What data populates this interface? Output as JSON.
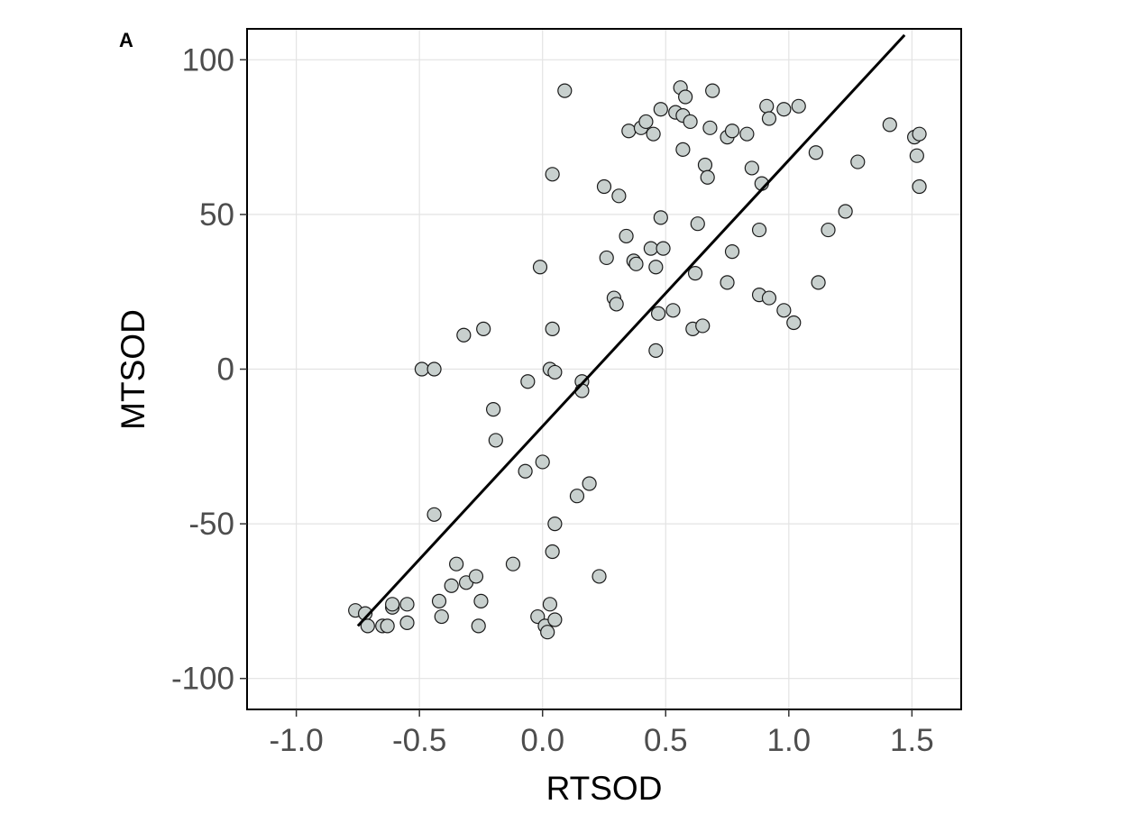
{
  "chart_data": {
    "type": "scatter",
    "panel_label": "A",
    "xlabel": "RTSOD",
    "ylabel": "MTSOD",
    "xlim": [
      -1.2,
      1.7
    ],
    "ylim": [
      -110,
      110
    ],
    "x_ticks": [
      -1.0,
      -0.5,
      0.0,
      0.5,
      1.0,
      1.5
    ],
    "x_tick_labels": [
      "-1.0",
      "-0.5",
      "0.0",
      "0.5",
      "1.0",
      "1.5"
    ],
    "y_ticks": [
      -100,
      -50,
      0,
      50,
      100
    ],
    "y_tick_labels": [
      "-100",
      "-50",
      "0",
      "50",
      "100"
    ],
    "grid": true,
    "legend": "none",
    "point_fill": "#c8d0ce",
    "point_stroke": "#1a1a1a",
    "fit_line": {
      "x": [
        -0.75,
        1.47
      ],
      "y": [
        -83,
        108
      ],
      "color": "#000000"
    },
    "points": [
      {
        "x": -0.76,
        "y": -78
      },
      {
        "x": -0.72,
        "y": -79
      },
      {
        "x": -0.71,
        "y": -83
      },
      {
        "x": -0.65,
        "y": -83
      },
      {
        "x": -0.63,
        "y": -83
      },
      {
        "x": -0.61,
        "y": -77
      },
      {
        "x": -0.61,
        "y": -76
      },
      {
        "x": -0.55,
        "y": -76
      },
      {
        "x": -0.55,
        "y": -82
      },
      {
        "x": -0.49,
        "y": 0
      },
      {
        "x": -0.44,
        "y": 0
      },
      {
        "x": -0.44,
        "y": -47
      },
      {
        "x": -0.42,
        "y": -75
      },
      {
        "x": -0.41,
        "y": -80
      },
      {
        "x": -0.37,
        "y": -70
      },
      {
        "x": -0.35,
        "y": -63
      },
      {
        "x": -0.31,
        "y": -69
      },
      {
        "x": -0.32,
        "y": 11
      },
      {
        "x": -0.27,
        "y": -67
      },
      {
        "x": -0.25,
        "y": -75
      },
      {
        "x": -0.26,
        "y": -83
      },
      {
        "x": -0.24,
        "y": 13
      },
      {
        "x": -0.2,
        "y": -13
      },
      {
        "x": -0.19,
        "y": -23
      },
      {
        "x": -0.12,
        "y": -63
      },
      {
        "x": -0.07,
        "y": -33
      },
      {
        "x": -0.06,
        "y": -4
      },
      {
        "x": -0.02,
        "y": -80
      },
      {
        "x": -0.01,
        "y": 33
      },
      {
        "x": 0.0,
        "y": -30
      },
      {
        "x": 0.01,
        "y": -83
      },
      {
        "x": 0.02,
        "y": -85
      },
      {
        "x": 0.03,
        "y": -76
      },
      {
        "x": 0.03,
        "y": 0
      },
      {
        "x": 0.04,
        "y": 63
      },
      {
        "x": 0.04,
        "y": 13
      },
      {
        "x": 0.05,
        "y": -1
      },
      {
        "x": 0.04,
        "y": -59
      },
      {
        "x": 0.05,
        "y": -81
      },
      {
        "x": 0.05,
        "y": -50
      },
      {
        "x": 0.09,
        "y": 90
      },
      {
        "x": 0.14,
        "y": -41
      },
      {
        "x": 0.16,
        "y": -4
      },
      {
        "x": 0.16,
        "y": -7
      },
      {
        "x": 0.19,
        "y": -37
      },
      {
        "x": 0.23,
        "y": -67
      },
      {
        "x": 0.25,
        "y": 59
      },
      {
        "x": 0.26,
        "y": 36
      },
      {
        "x": 0.29,
        "y": 23
      },
      {
        "x": 0.3,
        "y": 21
      },
      {
        "x": 0.31,
        "y": 56
      },
      {
        "x": 0.34,
        "y": 43
      },
      {
        "x": 0.35,
        "y": 77
      },
      {
        "x": 0.37,
        "y": 35
      },
      {
        "x": 0.38,
        "y": 34
      },
      {
        "x": 0.4,
        "y": 78
      },
      {
        "x": 0.42,
        "y": 80
      },
      {
        "x": 0.44,
        "y": 39
      },
      {
        "x": 0.45,
        "y": 76
      },
      {
        "x": 0.46,
        "y": 33
      },
      {
        "x": 0.46,
        "y": 6
      },
      {
        "x": 0.47,
        "y": 18
      },
      {
        "x": 0.48,
        "y": 84
      },
      {
        "x": 0.48,
        "y": 49
      },
      {
        "x": 0.49,
        "y": 39
      },
      {
        "x": 0.53,
        "y": 19
      },
      {
        "x": 0.54,
        "y": 83
      },
      {
        "x": 0.56,
        "y": 91
      },
      {
        "x": 0.57,
        "y": 71
      },
      {
        "x": 0.57,
        "y": 82
      },
      {
        "x": 0.58,
        "y": 88
      },
      {
        "x": 0.6,
        "y": 80
      },
      {
        "x": 0.61,
        "y": 13
      },
      {
        "x": 0.62,
        "y": 31
      },
      {
        "x": 0.63,
        "y": 47
      },
      {
        "x": 0.65,
        "y": 14
      },
      {
        "x": 0.66,
        "y": 66
      },
      {
        "x": 0.67,
        "y": 62
      },
      {
        "x": 0.68,
        "y": 78
      },
      {
        "x": 0.69,
        "y": 90
      },
      {
        "x": 0.75,
        "y": 28
      },
      {
        "x": 0.75,
        "y": 75
      },
      {
        "x": 0.77,
        "y": 77
      },
      {
        "x": 0.77,
        "y": 38
      },
      {
        "x": 0.83,
        "y": 76
      },
      {
        "x": 0.85,
        "y": 65
      },
      {
        "x": 0.88,
        "y": 45
      },
      {
        "x": 0.88,
        "y": 24
      },
      {
        "x": 0.89,
        "y": 60
      },
      {
        "x": 0.91,
        "y": 85
      },
      {
        "x": 0.92,
        "y": 81
      },
      {
        "x": 0.92,
        "y": 23
      },
      {
        "x": 0.98,
        "y": 84
      },
      {
        "x": 0.98,
        "y": 19
      },
      {
        "x": 1.02,
        "y": 15
      },
      {
        "x": 1.04,
        "y": 85
      },
      {
        "x": 1.11,
        "y": 70
      },
      {
        "x": 1.12,
        "y": 28
      },
      {
        "x": 1.16,
        "y": 45
      },
      {
        "x": 1.23,
        "y": 51
      },
      {
        "x": 1.28,
        "y": 67
      },
      {
        "x": 1.41,
        "y": 79
      },
      {
        "x": 1.51,
        "y": 75
      },
      {
        "x": 1.52,
        "y": 69
      },
      {
        "x": 1.53,
        "y": 76
      },
      {
        "x": 1.53,
        "y": 59
      }
    ]
  }
}
